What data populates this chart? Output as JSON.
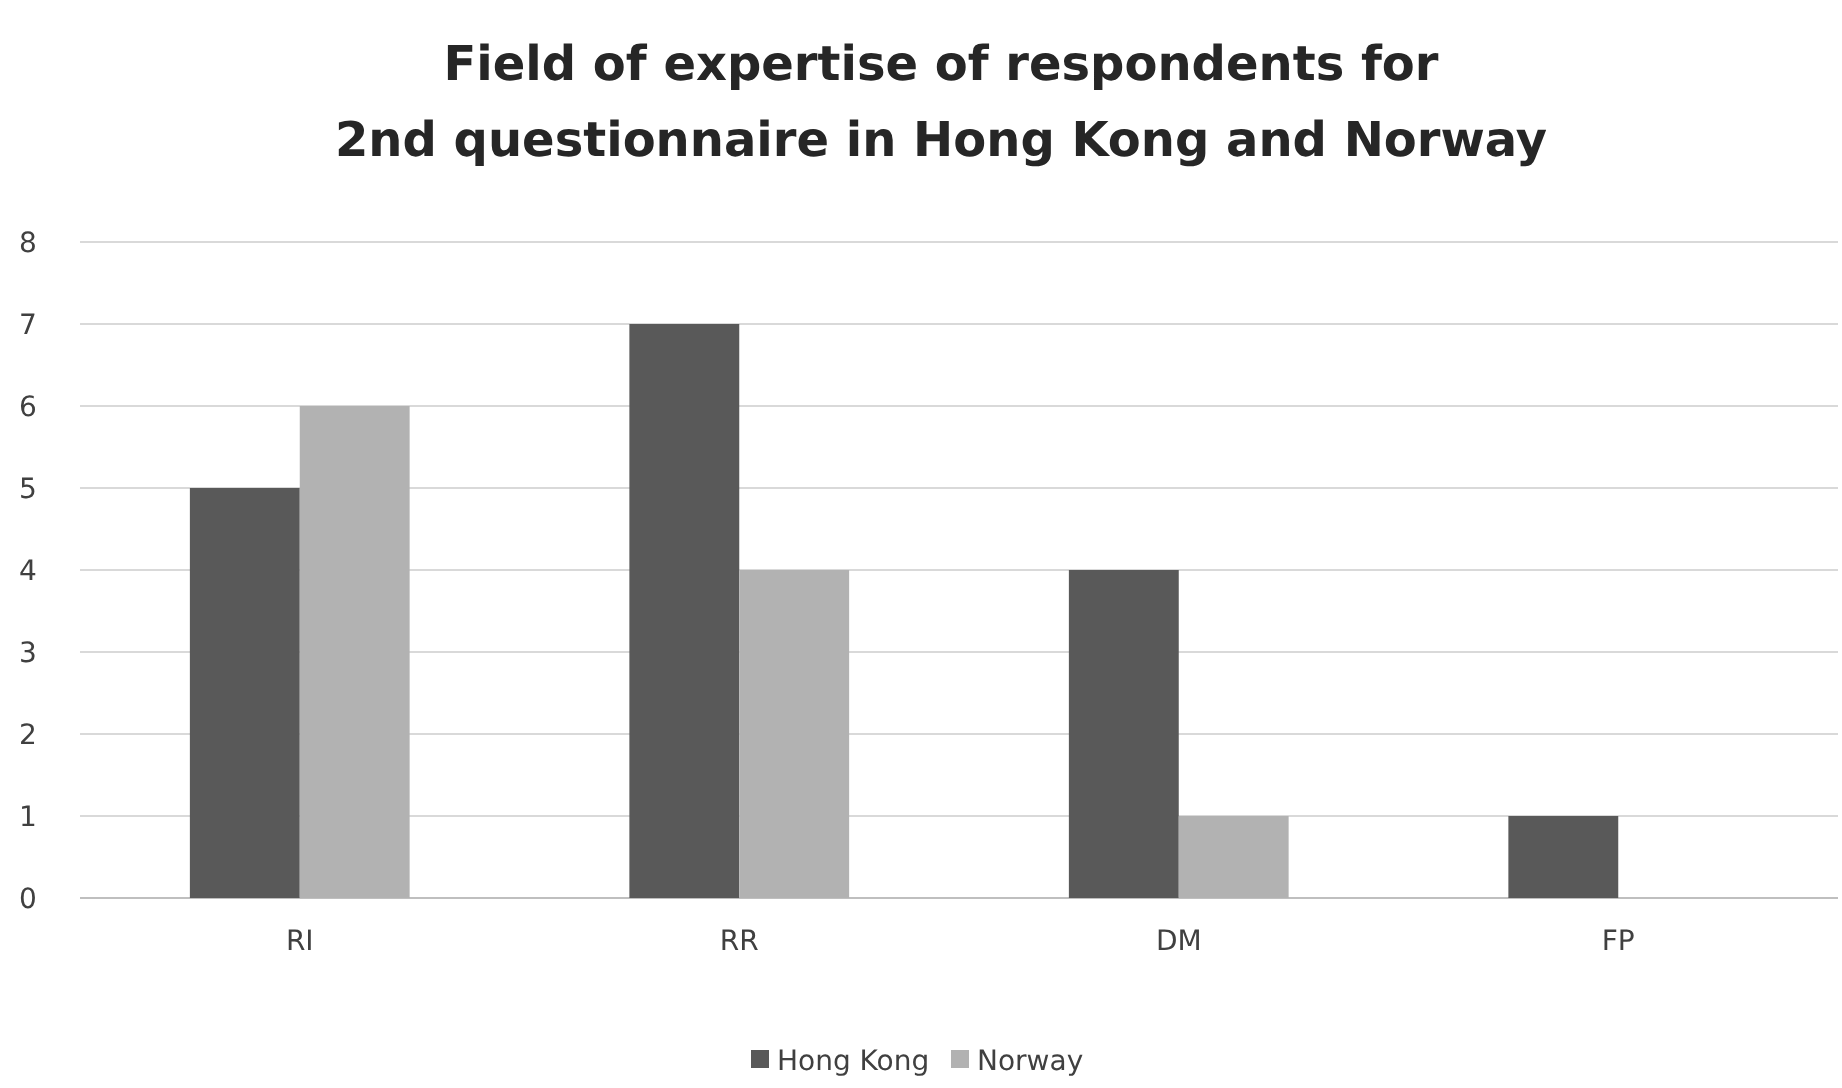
{
  "chart_data": {
    "type": "bar",
    "title": "Field of expertise of respondents for\n2nd questionnaire in Hong Kong and Norway",
    "categories": [
      "RI",
      "RR",
      "DM",
      "FP"
    ],
    "series": [
      {
        "name": "Hong Kong",
        "color": "#595959",
        "values": [
          5,
          7,
          4,
          1
        ]
      },
      {
        "name": "Norway",
        "color": "#b2b2b2",
        "values": [
          6,
          4,
          1,
          0
        ]
      }
    ],
    "ylim": [
      0,
      8
    ],
    "yticks": [
      0,
      1,
      2,
      3,
      4,
      5,
      6,
      7,
      8
    ],
    "grid": "y",
    "legend": "bottom"
  }
}
